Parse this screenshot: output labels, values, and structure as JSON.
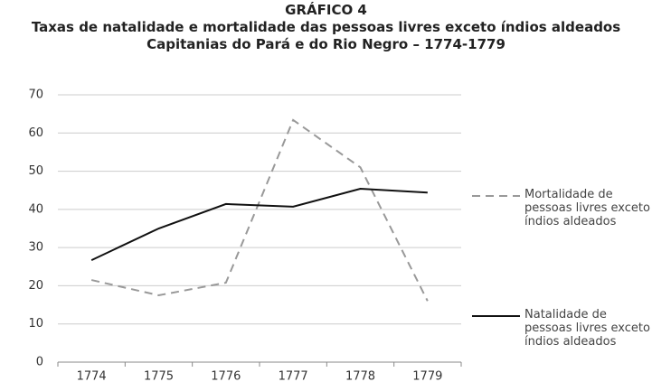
{
  "chart_data": {
    "type": "line",
    "title": "GRÁFICO 4",
    "subtitle": "Taxas de natalidade e mortalidade das pessoas livres exceto índios aldeados",
    "subtitle2": "Capitanias do Pará e do Rio Negro – 1774-1779",
    "categories": [
      "1774",
      "1775",
      "1776",
      "1777",
      "1778",
      "1779"
    ],
    "series": [
      {
        "name": "Mortalidade de pessoas livres exceto índios aldeados",
        "color": "#999999",
        "dashed": true,
        "values": [
          21.5,
          17.5,
          20.8,
          63.4,
          51,
          16
        ]
      },
      {
        "name": "Natalidade de pessoas livres exceto índios aldeados",
        "color": "#111111",
        "dashed": false,
        "values": [
          26.7,
          35,
          41.4,
          40.7,
          45.4,
          44.4
        ]
      }
    ],
    "ylim": [
      0,
      70
    ],
    "yticks": [
      0,
      10,
      20,
      30,
      40,
      50,
      60,
      70
    ],
    "grid": true
  }
}
